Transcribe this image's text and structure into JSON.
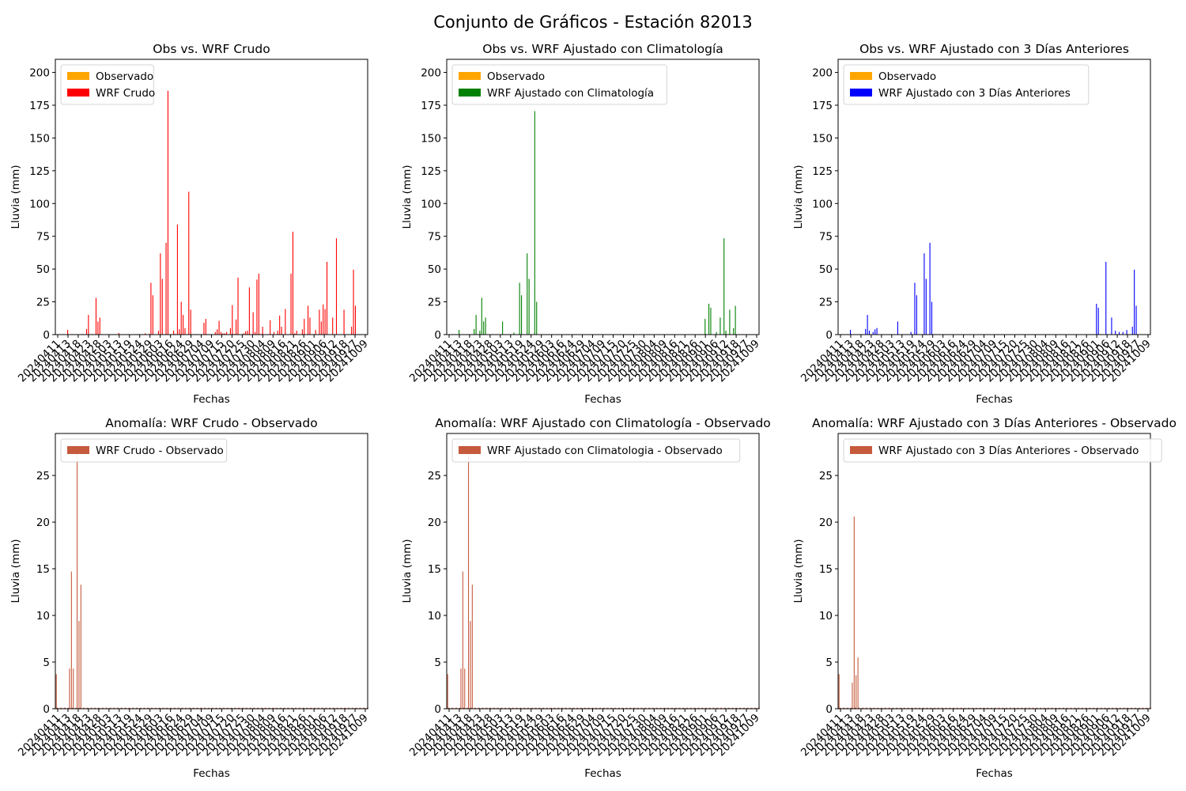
{
  "figure": {
    "title": "Conjunto de Gráficos - Estación 82013",
    "axis_text_color": "#000000",
    "observed_color": "#ffa500",
    "anomaly_color": "#c65a3c"
  },
  "chart_data": [
    {
      "type": "bar",
      "title": "Obs vs. WRF Crudo",
      "xlabel": "Fechas",
      "ylabel": "Lluvia (mm)",
      "ylim": [
        0,
        210
      ],
      "yticks": [
        0,
        25,
        50,
        75,
        100,
        125,
        150,
        175,
        200
      ],
      "xtick_labels": [
        "20240411",
        "20240413",
        "20240418",
        "20240423",
        "20240428",
        "20240503",
        "20240513",
        "20240519",
        "20240524",
        "20240529",
        "20240603",
        "20240616",
        "20240624",
        "20240629",
        "20240704",
        "20240709",
        "20240715",
        "20240720",
        "20240725",
        "20240730",
        "20240804",
        "20240809",
        "20240816",
        "20240821",
        "20240826",
        "20240901",
        "20240906",
        "20240912",
        "20240918",
        "20240927",
        "20241009"
      ],
      "legend_position": "upper-left",
      "series": [
        {
          "name": "Observado",
          "color": "#ffa500",
          "values": []
        },
        {
          "name": "WRF Crudo",
          "color": "#ff0000",
          "points": [
            [
              6,
              3.6
            ],
            [
              14,
              0.4
            ],
            [
              16,
              4.3
            ],
            [
              17,
              15
            ],
            [
              21,
              28
            ],
            [
              22,
              10
            ],
            [
              23,
              13
            ],
            [
              27,
              0.3
            ],
            [
              33,
              1.2
            ],
            [
              38,
              0.4
            ],
            [
              43,
              0.4
            ],
            [
              47,
              1
            ],
            [
              49,
              0.5
            ],
            [
              50,
              39.5
            ],
            [
              51,
              30
            ],
            [
              54,
              3
            ],
            [
              55,
              62
            ],
            [
              56,
              42.5
            ],
            [
              58,
              70
            ],
            [
              59,
              186
            ],
            [
              62,
              3
            ],
            [
              63,
              0.5
            ],
            [
              64,
              84
            ],
            [
              65,
              4
            ],
            [
              66,
              25
            ],
            [
              67,
              15
            ],
            [
              68,
              5
            ],
            [
              70,
              109
            ],
            [
              71,
              19
            ],
            [
              78,
              9
            ],
            [
              79,
              12
            ],
            [
              84,
              2
            ],
            [
              85,
              4
            ],
            [
              86,
              10.5
            ],
            [
              87,
              2
            ],
            [
              88,
              1
            ],
            [
              89,
              1
            ],
            [
              90,
              2
            ],
            [
              92,
              5
            ],
            [
              93,
              22.5
            ],
            [
              94,
              0.5
            ],
            [
              95,
              11.5
            ],
            [
              96,
              43.5
            ],
            [
              99,
              1
            ],
            [
              100,
              2.5
            ],
            [
              101,
              3
            ],
            [
              102,
              36
            ],
            [
              104,
              17
            ],
            [
              105,
              2
            ],
            [
              106,
              42
            ],
            [
              107,
              46.5
            ],
            [
              108,
              0.5
            ],
            [
              109,
              6
            ],
            [
              113,
              11
            ],
            [
              115,
              2
            ],
            [
              117,
              3
            ],
            [
              118,
              14.5
            ],
            [
              119,
              6
            ],
            [
              121,
              19.5
            ],
            [
              124,
              46.5
            ],
            [
              125,
              78.5
            ],
            [
              126,
              1
            ],
            [
              127,
              3
            ],
            [
              130,
              4
            ],
            [
              131,
              12
            ],
            [
              133,
              22
            ],
            [
              134,
              13
            ],
            [
              137,
              3.5
            ],
            [
              139,
              19
            ],
            [
              140,
              10
            ],
            [
              141,
              23
            ],
            [
              142,
              19.5
            ],
            [
              143,
              55.5
            ],
            [
              146,
              13
            ],
            [
              148,
              73.5
            ],
            [
              152,
              19
            ],
            [
              156,
              6
            ],
            [
              157,
              49.5
            ],
            [
              158,
              22
            ]
          ]
        }
      ]
    },
    {
      "type": "bar",
      "title": "Obs vs. WRF Ajustado con Climatología",
      "xlabel": "Fechas",
      "ylabel": "Lluvia (mm)",
      "ylim": [
        0,
        210
      ],
      "yticks": [
        0,
        25,
        50,
        75,
        100,
        125,
        150,
        175,
        200
      ],
      "xtick_labels": [
        "20240411",
        "20240413",
        "20240418",
        "20240423",
        "20240428",
        "20240503",
        "20240513",
        "20240519",
        "20240524",
        "20240529",
        "20240603",
        "20240616",
        "20240624",
        "20240629",
        "20240704",
        "20240709",
        "20240715",
        "20240720",
        "20240725",
        "20240730",
        "20240804",
        "20240809",
        "20240816",
        "20240821",
        "20240826",
        "20240901",
        "20240906",
        "20240912",
        "20240918",
        "20240927",
        "20241009"
      ],
      "legend_position": "upper-left",
      "series": [
        {
          "name": "Observado",
          "color": "#ffa500",
          "values": []
        },
        {
          "name": "WRF Ajustado con Climatología",
          "color": "#008000",
          "points": [
            [
              6,
              3.6
            ],
            [
              14,
              4.3
            ],
            [
              15,
              15
            ],
            [
              17,
              3
            ],
            [
              18,
              28
            ],
            [
              19,
              10
            ],
            [
              20,
              13
            ],
            [
              29,
              10
            ],
            [
              35,
              1.5
            ],
            [
              38,
              39.5
            ],
            [
              39,
              30
            ],
            [
              42,
              62
            ],
            [
              43,
              42.5
            ],
            [
              46,
              170.5
            ],
            [
              47,
              25
            ],
            [
              136,
              12
            ],
            [
              138,
              23.5
            ],
            [
              139,
              20.5
            ],
            [
              142,
              2
            ],
            [
              144,
              13
            ],
            [
              146,
              73.5
            ],
            [
              147,
              3
            ],
            [
              149,
              19
            ],
            [
              151,
              5
            ],
            [
              152,
              22
            ]
          ]
        }
      ]
    },
    {
      "type": "bar",
      "title": "Obs vs. WRF Ajustado con 3 Días Anteriores",
      "xlabel": "Fechas",
      "ylabel": "Lluvia (mm)",
      "ylim": [
        0,
        210
      ],
      "yticks": [
        0,
        25,
        50,
        75,
        100,
        125,
        150,
        175,
        200
      ],
      "xtick_labels": [
        "20240411",
        "20240413",
        "20240418",
        "20240423",
        "20240428",
        "20240503",
        "20240513",
        "20240519",
        "20240524",
        "20240529",
        "20240603",
        "20240616",
        "20240624",
        "20240629",
        "20240704",
        "20240709",
        "20240715",
        "20240720",
        "20240725",
        "20240730",
        "20240804",
        "20240809",
        "20240816",
        "20240821",
        "20240826",
        "20240901",
        "20240906",
        "20240912",
        "20240918",
        "20240927",
        "20241009"
      ],
      "legend_position": "upper-left",
      "series": [
        {
          "name": "Observado",
          "color": "#ffa500",
          "values": []
        },
        {
          "name": "WRF Ajustado con 3 Días Anteriores",
          "color": "#0000ff",
          "points": [
            [
              6,
              3.6
            ],
            [
              14,
              4.3
            ],
            [
              15,
              15
            ],
            [
              16,
              3
            ],
            [
              18,
              2
            ],
            [
              19,
              4
            ],
            [
              20,
              5
            ],
            [
              31,
              10
            ],
            [
              38,
              2
            ],
            [
              40,
              39.5
            ],
            [
              41,
              30
            ],
            [
              45,
              62
            ],
            [
              46,
              42.5
            ],
            [
              48,
              70
            ],
            [
              49,
              25
            ],
            [
              136,
              23.5
            ],
            [
              137,
              20.5
            ],
            [
              141,
              55.5
            ],
            [
              144,
              13
            ],
            [
              146,
              3
            ],
            [
              148,
              2
            ],
            [
              150,
              2
            ],
            [
              152,
              3.5
            ],
            [
              155,
              6
            ],
            [
              156,
              49.5
            ],
            [
              157,
              22
            ]
          ]
        }
      ]
    },
    {
      "type": "bar",
      "title": "Anomalía: WRF Crudo - Observado",
      "xlabel": "Fechas",
      "ylabel": "Lluvia (mm)",
      "ylim": [
        0,
        29.5
      ],
      "yticks": [
        0,
        5,
        10,
        15,
        20,
        25
      ],
      "xtick_labels": [
        "20240411",
        "20240413",
        "20240418",
        "20240423",
        "20240428",
        "20240503",
        "20240513",
        "20240519",
        "20240524",
        "20240529",
        "20240603",
        "20240616",
        "20240624",
        "20240629",
        "20240704",
        "20240709",
        "20240715",
        "20240720",
        "20240725",
        "20240730",
        "20240804",
        "20240809",
        "20240816",
        "20240821",
        "20240826",
        "20240901",
        "20240906",
        "20240912",
        "20240918",
        "20240927",
        "20241009"
      ],
      "legend_position": "upper-left",
      "series": [
        {
          "name": "WRF Crudo - Observado",
          "color": "#c65a3c",
          "points": [
            [
              0,
              3.7
            ],
            [
              7,
              4.3
            ],
            [
              8,
              14.7
            ],
            [
              9,
              4.3
            ],
            [
              11,
              28
            ],
            [
              12,
              9.4
            ],
            [
              13,
              13.3
            ]
          ]
        }
      ]
    },
    {
      "type": "bar",
      "title": "Anomalía: WRF Ajustado con Climatología - Observado",
      "xlabel": "Fechas",
      "ylabel": "Lluvia (mm)",
      "ylim": [
        0,
        29.5
      ],
      "yticks": [
        0,
        5,
        10,
        15,
        20,
        25
      ],
      "xtick_labels": [
        "20240411",
        "20240413",
        "20240418",
        "20240423",
        "20240428",
        "20240503",
        "20240513",
        "20240519",
        "20240524",
        "20240529",
        "20240603",
        "20240616",
        "20240624",
        "20240629",
        "20240704",
        "20240709",
        "20240715",
        "20240720",
        "20240725",
        "20240730",
        "20240804",
        "20240809",
        "20240816",
        "20240821",
        "20240826",
        "20240901",
        "20240906",
        "20240912",
        "20240918",
        "20240927",
        "20241009"
      ],
      "legend_position": "upper-left",
      "series": [
        {
          "name": "WRF Ajustado con Climatologia - Observado",
          "color": "#c65a3c",
          "points": [
            [
              0,
              3.7
            ],
            [
              7,
              4.3
            ],
            [
              8,
              14.7
            ],
            [
              9,
              4.3
            ],
            [
              11,
              28
            ],
            [
              12,
              9.4
            ],
            [
              13,
              13.3
            ]
          ]
        }
      ]
    },
    {
      "type": "bar",
      "title": "Anomalía: WRF Ajustado con 3 Días Anteriores - Observado",
      "xlabel": "Fechas",
      "ylabel": "Lluvia (mm)",
      "ylim": [
        0,
        29.5
      ],
      "yticks": [
        0,
        5,
        10,
        15,
        20,
        25
      ],
      "xtick_labels": [
        "20240411",
        "20240413",
        "20240418",
        "20240423",
        "20240428",
        "20240503",
        "20240513",
        "20240519",
        "20240524",
        "20240529",
        "20240603",
        "20240616",
        "20240624",
        "20240629",
        "20240704",
        "20240709",
        "20240715",
        "20240720",
        "20240725",
        "20240730",
        "20240804",
        "20240809",
        "20240816",
        "20240821",
        "20240826",
        "20240901",
        "20240906",
        "20240912",
        "20240918",
        "20240927",
        "20241009"
      ],
      "legend_position": "upper-left",
      "series": [
        {
          "name": "WRF Ajustado con 3 Días Anteriores - Observado",
          "color": "#c65a3c",
          "points": [
            [
              0,
              3.7
            ],
            [
              7,
              2.8
            ],
            [
              8,
              20.6
            ],
            [
              9,
              3.6
            ],
            [
              10,
              5.5
            ]
          ]
        }
      ]
    }
  ]
}
